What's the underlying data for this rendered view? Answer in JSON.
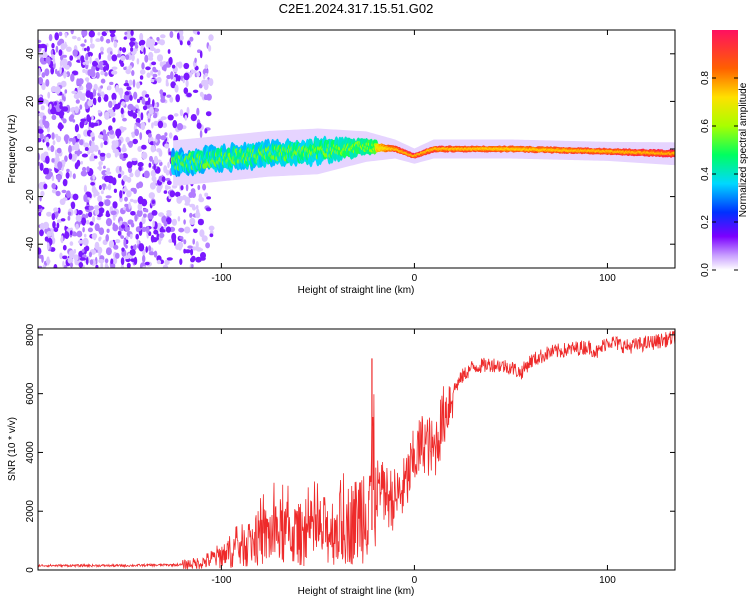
{
  "title": "C2E1.2024.317.15.51.G02",
  "colors": {
    "snr_line": "#ee2a2a",
    "axis": "#000000",
    "noise": "#8a2be2",
    "background": "#ffffff"
  },
  "chart_data": [
    {
      "type": "heatmap",
      "xlabel": "Height of straight line (km)",
      "ylabel": "Frequency (Hz)",
      "xlim": [
        -195,
        135
      ],
      "ylim": [
        -50,
        50
      ],
      "xticks": [
        -100,
        0,
        100
      ],
      "yticks": [
        -40,
        -20,
        0,
        20,
        40
      ],
      "xtick_labels": [
        "-100",
        "0",
        "100"
      ],
      "ytick_labels": [
        "-40",
        "-20",
        "0",
        "20",
        "40"
      ],
      "colorbar": {
        "label": "Normalized spectral amplitude",
        "range": [
          0,
          1
        ],
        "ticks": [
          0.0,
          0.2,
          0.4,
          0.6,
          0.8
        ],
        "tick_labels": [
          "0.0",
          "0.2",
          "0.4",
          "0.6",
          "0.8"
        ]
      },
      "ridge": {
        "description_x": [
          -125,
          -100,
          -75,
          -50,
          -25,
          -10,
          0,
          10,
          50,
          100,
          135
        ],
        "center_hz": [
          -6,
          -4,
          -2,
          -1,
          1,
          0,
          -3,
          0,
          0,
          -1,
          -2
        ],
        "half_width_hz": [
          6,
          6,
          6,
          6,
          4,
          2.5,
          2,
          2.5,
          2.5,
          2.5,
          3
        ],
        "peak_amplitude": [
          0.35,
          0.4,
          0.4,
          0.45,
          0.55,
          0.85,
          0.9,
          0.85,
          0.8,
          0.85,
          0.9
        ]
      },
      "noise_region_x": [
        -195,
        -105
      ]
    },
    {
      "type": "line",
      "xlabel": "Height of straight line (km)",
      "ylabel": "SNR (10 * v/v)",
      "xlim": [
        -195,
        135
      ],
      "ylim": [
        0,
        8200
      ],
      "xticks": [
        -100,
        0,
        100
      ],
      "yticks": [
        0,
        2000,
        4000,
        6000,
        8000
      ],
      "xtick_labels": [
        "-100",
        "0",
        "100"
      ],
      "ytick_labels": [
        "0",
        "2000",
        "4000",
        "6000",
        "8000"
      ],
      "series": [
        {
          "name": "SNR",
          "x": [
            -195,
            -150,
            -120,
            -110,
            -100,
            -90,
            -80,
            -70,
            -60,
            -50,
            -40,
            -30,
            -25,
            -22,
            -20,
            -15,
            -10,
            -5,
            0,
            5,
            10,
            15,
            20,
            25,
            30,
            40,
            50,
            55,
            60,
            70,
            80,
            90,
            95,
            100,
            110,
            120,
            135
          ],
          "y": [
            150,
            150,
            180,
            250,
            500,
            800,
            1100,
            1300,
            1200,
            1300,
            1400,
            1700,
            2300,
            3500,
            2800,
            2500,
            2400,
            2800,
            3800,
            4400,
            4000,
            5200,
            6100,
            6600,
            6900,
            7000,
            6900,
            6700,
            7100,
            7400,
            7500,
            7600,
            7400,
            7800,
            7600,
            7700,
            7900
          ],
          "spike": {
            "x": -22,
            "y": 7200
          }
        }
      ]
    }
  ]
}
